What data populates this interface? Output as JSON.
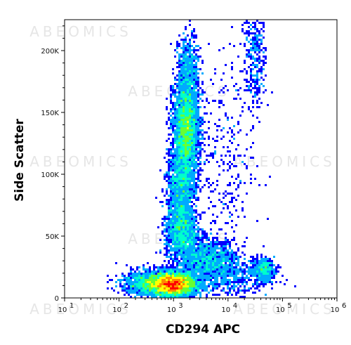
{
  "chart_data": {
    "type": "scatter",
    "title": "",
    "xlabel": "CD294 APC",
    "ylabel": "Side Scatter",
    "x_scale": "log",
    "xlim": [
      10,
      1000000
    ],
    "ylim": [
      0,
      225000
    ],
    "x_ticks": [
      {
        "value": 10,
        "base": "10",
        "exp": "1"
      },
      {
        "value": 100,
        "base": "10",
        "exp": "2"
      },
      {
        "value": 1000,
        "base": "10",
        "exp": "3"
      },
      {
        "value": 10000,
        "base": "10",
        "exp": "4"
      },
      {
        "value": 100000,
        "base": "10",
        "exp": "5"
      },
      {
        "value": 1000000,
        "base": "10",
        "exp": "6"
      }
    ],
    "y_ticks": [
      {
        "value": 0,
        "label": "0"
      },
      {
        "value": 50000,
        "label": "50K"
      },
      {
        "value": 100000,
        "label": "100K"
      },
      {
        "value": 150000,
        "label": "150K"
      },
      {
        "value": 200000,
        "label": "200K"
      }
    ],
    "density_colormap": [
      "#0000ff",
      "#00aaff",
      "#00ffcc",
      "#66ff33",
      "#ffff00",
      "#ff8800",
      "#ff0000"
    ],
    "populations": [
      {
        "x": 950,
        "y": 11000,
        "sx": 0.22,
        "sy": 5000,
        "n": 4500
      },
      {
        "x": 1700,
        "y": 135000,
        "sx": 0.12,
        "sy": 22000,
        "n": 3400
      },
      {
        "x": 1400,
        "y": 55000,
        "sx": 0.14,
        "sy": 12000,
        "n": 1400
      },
      {
        "x": 1300,
        "y": 90000,
        "sx": 0.12,
        "sy": 14000,
        "n": 900
      },
      {
        "x": 1900,
        "y": 185000,
        "sx": 0.1,
        "sy": 14000,
        "n": 500
      },
      {
        "x": 4000,
        "y": 30000,
        "sx": 0.28,
        "sy": 9000,
        "n": 1300
      },
      {
        "x": 300,
        "y": 12000,
        "sx": 0.22,
        "sy": 5000,
        "n": 900
      },
      {
        "x": 45000,
        "y": 23000,
        "sx": 0.1,
        "sy": 4500,
        "n": 400
      },
      {
        "x": 32000,
        "y": 200000,
        "sx": 0.1,
        "sy": 25000,
        "n": 350
      },
      {
        "x": 8000,
        "y": 110000,
        "sx": 0.3,
        "sy": 45000,
        "n": 300
      },
      {
        "x": 12000,
        "y": 18000,
        "sx": 0.35,
        "sy": 9000,
        "n": 500
      }
    ],
    "watermark": "ABEOMICS",
    "grid": false,
    "legend": "none"
  }
}
